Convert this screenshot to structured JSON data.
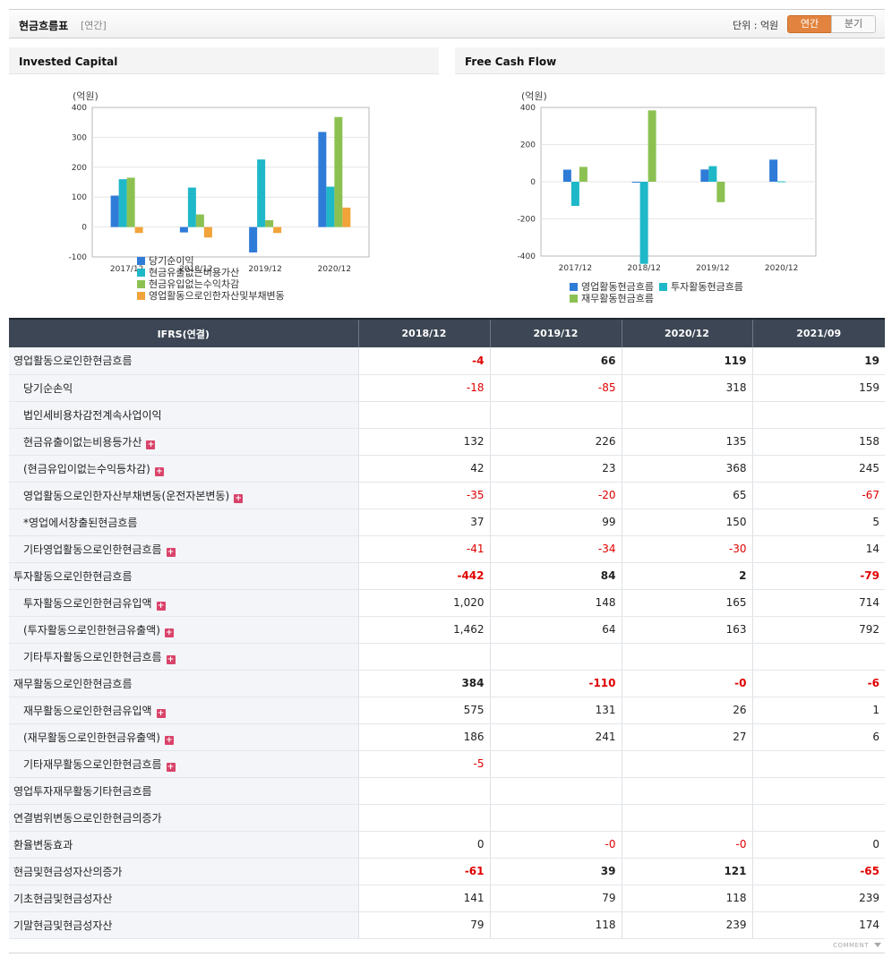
{
  "header": {
    "title": "현금흐름표",
    "subtitle": "[연간]",
    "unit_label": "단위 : 억원",
    "annual_label": "연간",
    "quarter_label": "분기"
  },
  "chart_data": [
    {
      "type": "bar",
      "title": "Invested Capital",
      "ylabel": "(억원)",
      "categories": [
        "2017/12",
        "2018/12",
        "2019/12",
        "2020/12"
      ],
      "ylim": [
        -100,
        400
      ],
      "yticks": [
        -100,
        0,
        100,
        200,
        300,
        400
      ],
      "grid": true,
      "legend": "bottom",
      "series": [
        {
          "name": "당기순이익",
          "color": "#2f7bd8",
          "values": [
            105,
            -18,
            -85,
            318
          ]
        },
        {
          "name": "현금유출없는비용가산",
          "color": "#1fb8c8",
          "values": [
            160,
            132,
            226,
            135
          ]
        },
        {
          "name": "현금유입없는수익차감",
          "color": "#8cc152",
          "values": [
            165,
            42,
            23,
            368
          ]
        },
        {
          "name": "영업활동으로인한자산및부채변동",
          "color": "#f2a33a",
          "values": [
            -20,
            -35,
            -20,
            65
          ]
        }
      ]
    },
    {
      "type": "bar",
      "title": "Free Cash Flow",
      "ylabel": "(억원)",
      "categories": [
        "2017/12",
        "2018/12",
        "2019/12",
        "2020/12"
      ],
      "ylim": [
        -400,
        400
      ],
      "yticks": [
        -400,
        -200,
        0,
        200,
        400
      ],
      "grid": true,
      "legend": "bottom",
      "series": [
        {
          "name": "영업활동현금흐름",
          "color": "#2f7bd8",
          "values": [
            65,
            -4,
            66,
            119
          ]
        },
        {
          "name": "투자활동현금흐름",
          "color": "#1fb8c8",
          "values": [
            -130,
            -442,
            84,
            2
          ]
        },
        {
          "name": "재무활동현금흐름",
          "color": "#8cc152",
          "values": [
            80,
            384,
            -110,
            0
          ]
        }
      ]
    }
  ],
  "table": {
    "corner_header": "IFRS(연결)",
    "columns": [
      "2018/12",
      "2019/12",
      "2020/12",
      "2021/09"
    ],
    "rows": [
      {
        "label": "영업활동으로인한현금흐름",
        "level": 0,
        "expand": false,
        "bold": true,
        "values": [
          "-4",
          "66",
          "119",
          "19"
        ]
      },
      {
        "label": "당기순손익",
        "level": 1,
        "expand": false,
        "bold": false,
        "values": [
          "-18",
          "-85",
          "318",
          "159"
        ]
      },
      {
        "label": "법인세비용차감전계속사업이익",
        "level": 1,
        "expand": false,
        "bold": false,
        "values": [
          "",
          "",
          "",
          ""
        ]
      },
      {
        "label": "현금유출이없는비용등가산",
        "level": 1,
        "expand": true,
        "bold": false,
        "values": [
          "132",
          "226",
          "135",
          "158"
        ]
      },
      {
        "label": "(현금유입이없는수익등차감)",
        "level": 1,
        "expand": true,
        "bold": false,
        "values": [
          "42",
          "23",
          "368",
          "245"
        ]
      },
      {
        "label": "영업활동으로인한자산부채변동(운전자본변동)",
        "level": 1,
        "expand": true,
        "bold": false,
        "values": [
          "-35",
          "-20",
          "65",
          "-67"
        ]
      },
      {
        "label": "*영업에서창출된현금흐름",
        "level": 1,
        "expand": false,
        "bold": false,
        "values": [
          "37",
          "99",
          "150",
          "5"
        ]
      },
      {
        "label": "기타영업활동으로인한현금흐름",
        "level": 1,
        "expand": true,
        "bold": false,
        "values": [
          "-41",
          "-34",
          "-30",
          "14"
        ]
      },
      {
        "label": "투자활동으로인한현금흐름",
        "level": 0,
        "expand": false,
        "bold": true,
        "values": [
          "-442",
          "84",
          "2",
          "-79"
        ]
      },
      {
        "label": "투자활동으로인한현금유입액",
        "level": 1,
        "expand": true,
        "bold": false,
        "values": [
          "1,020",
          "148",
          "165",
          "714"
        ]
      },
      {
        "label": "(투자활동으로인한현금유출액)",
        "level": 1,
        "expand": true,
        "bold": false,
        "values": [
          "1,462",
          "64",
          "163",
          "792"
        ]
      },
      {
        "label": "기타투자활동으로인한현금흐름",
        "level": 1,
        "expand": true,
        "bold": false,
        "values": [
          "",
          "",
          "",
          ""
        ]
      },
      {
        "label": "재무활동으로인한현금흐름",
        "level": 0,
        "expand": false,
        "bold": true,
        "values": [
          "384",
          "-110",
          "-0",
          "-6"
        ]
      },
      {
        "label": "재무활동으로인한현금유입액",
        "level": 1,
        "expand": true,
        "bold": false,
        "values": [
          "575",
          "131",
          "26",
          "1"
        ]
      },
      {
        "label": "(재무활동으로인한현금유출액)",
        "level": 1,
        "expand": true,
        "bold": false,
        "values": [
          "186",
          "241",
          "27",
          "6"
        ]
      },
      {
        "label": "기타재무활동으로인한현금흐름",
        "level": 1,
        "expand": true,
        "bold": false,
        "values": [
          "-5",
          "",
          "",
          ""
        ]
      },
      {
        "label": "영업투자재무활동기타현금흐름",
        "level": 0,
        "expand": false,
        "bold": false,
        "values": [
          "",
          "",
          "",
          ""
        ]
      },
      {
        "label": "연결범위변동으로인한현금의증가",
        "level": 0,
        "expand": false,
        "bold": false,
        "values": [
          "",
          "",
          "",
          ""
        ]
      },
      {
        "label": "환율변동효과",
        "level": 0,
        "expand": false,
        "bold": false,
        "values": [
          "0",
          "-0",
          "-0",
          "0"
        ]
      },
      {
        "label": "현금및현금성자산의증가",
        "level": 0,
        "expand": false,
        "bold": true,
        "values": [
          "-61",
          "39",
          "121",
          "-65"
        ]
      },
      {
        "label": "기초현금및현금성자산",
        "level": 0,
        "expand": false,
        "bold": false,
        "values": [
          "141",
          "79",
          "118",
          "239"
        ]
      },
      {
        "label": "기말현금및현금성자산",
        "level": 0,
        "expand": false,
        "bold": false,
        "values": [
          "79",
          "118",
          "239",
          "174"
        ]
      }
    ]
  },
  "footer": {
    "comment_label": "COMMENT"
  }
}
